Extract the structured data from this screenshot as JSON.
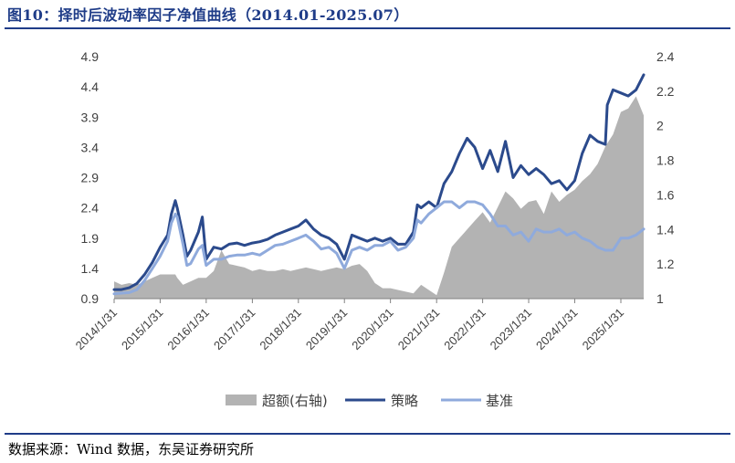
{
  "figure": {
    "title": "图10：择时后波动率因子净值曲线（2014.01-2025.07）",
    "source": "数据来源：Wind 数据，东吴证券研究所"
  },
  "colors": {
    "strategy": "#2b4a8c",
    "benchmark": "#8faadc",
    "excess": "#b3b3b3",
    "brand": "#1f3c88"
  },
  "chart_data": {
    "type": "line",
    "title": "",
    "x_type": "date",
    "x_ticks": [
      "2014/1/31",
      "2015/1/31",
      "2016/1/31",
      "2017/1/31",
      "2018/1/31",
      "2019/1/31",
      "2020/1/31",
      "2021/1/31",
      "2022/1/31",
      "2023/1/31",
      "2024/1/31",
      "2025/1/31"
    ],
    "x_range": [
      "2014-01-31",
      "2025-07-31"
    ],
    "y_left": {
      "range": [
        0.9,
        4.9
      ],
      "ticks": [
        "0.9",
        "1.4",
        "1.9",
        "2.4",
        "2.9",
        "3.4",
        "3.9",
        "4.4",
        "4.9"
      ]
    },
    "y_right": {
      "range": [
        1.0,
        2.4
      ],
      "ticks": [
        "1",
        "1.2",
        "1.4",
        "1.6",
        "1.8",
        "2",
        "2.2",
        "2.4"
      ]
    },
    "grid": false,
    "legend_position": "bottom",
    "series": [
      {
        "name": "超额(右轴)",
        "type": "area",
        "axis": "right",
        "x": [
          "2014-01-31",
          "2014-03-31",
          "2014-05-31",
          "2014-07-31",
          "2014-09-30",
          "2014-11-30",
          "2015-01-31",
          "2015-03-31",
          "2015-05-31",
          "2015-06-15",
          "2015-07-31",
          "2015-09-30",
          "2015-11-30",
          "2016-01-31",
          "2016-03-31",
          "2016-05-31",
          "2016-07-31",
          "2016-09-30",
          "2016-11-30",
          "2017-01-31",
          "2017-03-31",
          "2017-05-31",
          "2017-07-31",
          "2017-09-30",
          "2017-11-30",
          "2018-01-31",
          "2018-03-31",
          "2018-05-31",
          "2018-07-31",
          "2018-09-30",
          "2018-11-30",
          "2019-01-31",
          "2019-03-31",
          "2019-05-31",
          "2019-07-31",
          "2019-09-30",
          "2019-11-30",
          "2020-01-31",
          "2020-03-31",
          "2020-05-31",
          "2020-07-31",
          "2020-09-30",
          "2020-11-30",
          "2021-01-31",
          "2021-03-31",
          "2021-05-31",
          "2021-07-31",
          "2021-09-30",
          "2021-11-30",
          "2022-01-31",
          "2022-03-31",
          "2022-05-31",
          "2022-07-31",
          "2022-09-30",
          "2022-11-30",
          "2023-01-31",
          "2023-03-31",
          "2023-05-31",
          "2023-07-31",
          "2023-09-30",
          "2023-11-30",
          "2024-01-31",
          "2024-03-31",
          "2024-05-31",
          "2024-07-31",
          "2024-09-30",
          "2024-11-30",
          "2025-01-31",
          "2025-03-31",
          "2025-05-31",
          "2025-07-31"
        ],
        "values": [
          1.1,
          1.08,
          1.09,
          1.08,
          1.1,
          1.12,
          1.14,
          1.14,
          1.14,
          1.12,
          1.08,
          1.1,
          1.12,
          1.12,
          1.16,
          1.28,
          1.2,
          1.19,
          1.18,
          1.16,
          1.17,
          1.16,
          1.16,
          1.17,
          1.16,
          1.17,
          1.18,
          1.17,
          1.16,
          1.17,
          1.18,
          1.17,
          1.19,
          1.2,
          1.16,
          1.09,
          1.06,
          1.06,
          1.05,
          1.04,
          1.03,
          1.08,
          1.05,
          1.02,
          1.15,
          1.3,
          1.35,
          1.4,
          1.45,
          1.5,
          1.44,
          1.53,
          1.62,
          1.58,
          1.52,
          1.56,
          1.57,
          1.49,
          1.62,
          1.56,
          1.6,
          1.63,
          1.68,
          1.72,
          1.78,
          1.88,
          1.95,
          2.08,
          2.1,
          2.17,
          2.06
        ]
      },
      {
        "name": "策略",
        "type": "line",
        "axis": "left",
        "x": [
          "2014-01-31",
          "2014-03-31",
          "2014-05-31",
          "2014-07-31",
          "2014-09-30",
          "2014-11-30",
          "2015-01-31",
          "2015-03-31",
          "2015-04-30",
          "2015-05-31",
          "2015-06-15",
          "2015-07-31",
          "2015-08-31",
          "2015-09-30",
          "2015-11-30",
          "2015-12-31",
          "2016-01-31",
          "2016-03-31",
          "2016-05-31",
          "2016-07-31",
          "2016-09-30",
          "2016-11-30",
          "2017-01-31",
          "2017-03-31",
          "2017-05-31",
          "2017-07-31",
          "2017-09-30",
          "2017-11-30",
          "2018-01-31",
          "2018-03-31",
          "2018-05-31",
          "2018-07-31",
          "2018-09-30",
          "2018-11-30",
          "2019-01-31",
          "2019-03-31",
          "2019-05-31",
          "2019-07-31",
          "2019-09-30",
          "2019-11-30",
          "2020-01-31",
          "2020-03-31",
          "2020-05-31",
          "2020-07-31",
          "2020-08-31",
          "2020-09-30",
          "2020-11-30",
          "2021-01-31",
          "2021-03-31",
          "2021-05-31",
          "2021-07-31",
          "2021-09-30",
          "2021-11-30",
          "2022-01-31",
          "2022-03-31",
          "2022-05-31",
          "2022-07-31",
          "2022-09-30",
          "2022-11-30",
          "2023-01-31",
          "2023-03-31",
          "2023-05-31",
          "2023-07-31",
          "2023-09-30",
          "2023-11-30",
          "2024-01-31",
          "2024-03-31",
          "2024-05-31",
          "2024-07-31",
          "2024-09-30",
          "2024-10-15",
          "2024-11-30",
          "2025-01-31",
          "2025-03-31",
          "2025-05-31",
          "2025-07-31"
        ],
        "values": [
          1.05,
          1.05,
          1.08,
          1.15,
          1.3,
          1.5,
          1.75,
          1.95,
          2.3,
          2.52,
          2.4,
          1.95,
          1.6,
          1.7,
          2.0,
          2.25,
          1.55,
          1.75,
          1.72,
          1.8,
          1.82,
          1.78,
          1.82,
          1.84,
          1.88,
          1.95,
          2.0,
          2.05,
          2.1,
          2.2,
          2.05,
          1.95,
          1.9,
          1.8,
          1.55,
          1.95,
          1.9,
          1.85,
          1.9,
          1.85,
          1.9,
          1.8,
          1.8,
          2.0,
          2.45,
          2.4,
          2.5,
          2.4,
          2.8,
          3.0,
          3.3,
          3.55,
          3.4,
          3.05,
          3.35,
          3.0,
          3.5,
          2.9,
          3.1,
          2.95,
          3.05,
          2.95,
          2.8,
          2.85,
          2.7,
          2.85,
          3.3,
          3.6,
          3.5,
          3.45,
          4.1,
          4.35,
          4.3,
          4.25,
          4.35,
          4.6
        ]
      },
      {
        "name": "基准",
        "type": "line",
        "axis": "left",
        "x": [
          "2014-01-31",
          "2014-03-31",
          "2014-05-31",
          "2014-07-31",
          "2014-09-30",
          "2014-11-30",
          "2015-01-31",
          "2015-03-31",
          "2015-04-30",
          "2015-05-31",
          "2015-06-15",
          "2015-07-31",
          "2015-08-31",
          "2015-09-30",
          "2015-11-30",
          "2015-12-31",
          "2016-01-31",
          "2016-03-31",
          "2016-05-31",
          "2016-07-31",
          "2016-09-30",
          "2016-11-30",
          "2017-01-31",
          "2017-03-31",
          "2017-05-31",
          "2017-07-31",
          "2017-09-30",
          "2017-11-30",
          "2018-01-31",
          "2018-03-31",
          "2018-05-31",
          "2018-07-31",
          "2018-09-30",
          "2018-11-30",
          "2019-01-31",
          "2019-03-31",
          "2019-05-31",
          "2019-07-31",
          "2019-09-30",
          "2019-11-30",
          "2020-01-31",
          "2020-03-31",
          "2020-05-31",
          "2020-07-31",
          "2020-08-31",
          "2020-09-30",
          "2020-11-30",
          "2021-01-31",
          "2021-03-31",
          "2021-05-31",
          "2021-07-31",
          "2021-09-30",
          "2021-11-30",
          "2022-01-31",
          "2022-03-31",
          "2022-05-31",
          "2022-07-31",
          "2022-09-30",
          "2022-11-30",
          "2023-01-31",
          "2023-03-31",
          "2023-05-31",
          "2023-07-31",
          "2023-09-30",
          "2023-11-30",
          "2024-01-31",
          "2024-03-31",
          "2024-05-31",
          "2024-07-31",
          "2024-09-30",
          "2024-10-15",
          "2024-11-30",
          "2025-01-31",
          "2025-03-31",
          "2025-05-31",
          "2025-07-31"
        ],
        "values": [
          0.98,
          0.99,
          1.0,
          1.05,
          1.2,
          1.4,
          1.6,
          1.85,
          2.15,
          2.3,
          2.25,
          1.8,
          1.45,
          1.48,
          1.72,
          1.78,
          1.45,
          1.55,
          1.55,
          1.6,
          1.62,
          1.62,
          1.65,
          1.62,
          1.7,
          1.78,
          1.8,
          1.85,
          1.9,
          1.95,
          1.85,
          1.72,
          1.75,
          1.65,
          1.4,
          1.7,
          1.75,
          1.7,
          1.78,
          1.78,
          1.85,
          1.7,
          1.75,
          1.9,
          2.2,
          2.15,
          2.3,
          2.4,
          2.5,
          2.5,
          2.4,
          2.5,
          2.5,
          2.45,
          2.3,
          2.1,
          2.1,
          1.95,
          2.0,
          1.85,
          2.05,
          2.0,
          2.0,
          2.05,
          1.95,
          2.0,
          1.9,
          1.85,
          1.75,
          1.7,
          1.7,
          1.7,
          1.9,
          1.9,
          1.95,
          2.05
        ]
      }
    ]
  }
}
